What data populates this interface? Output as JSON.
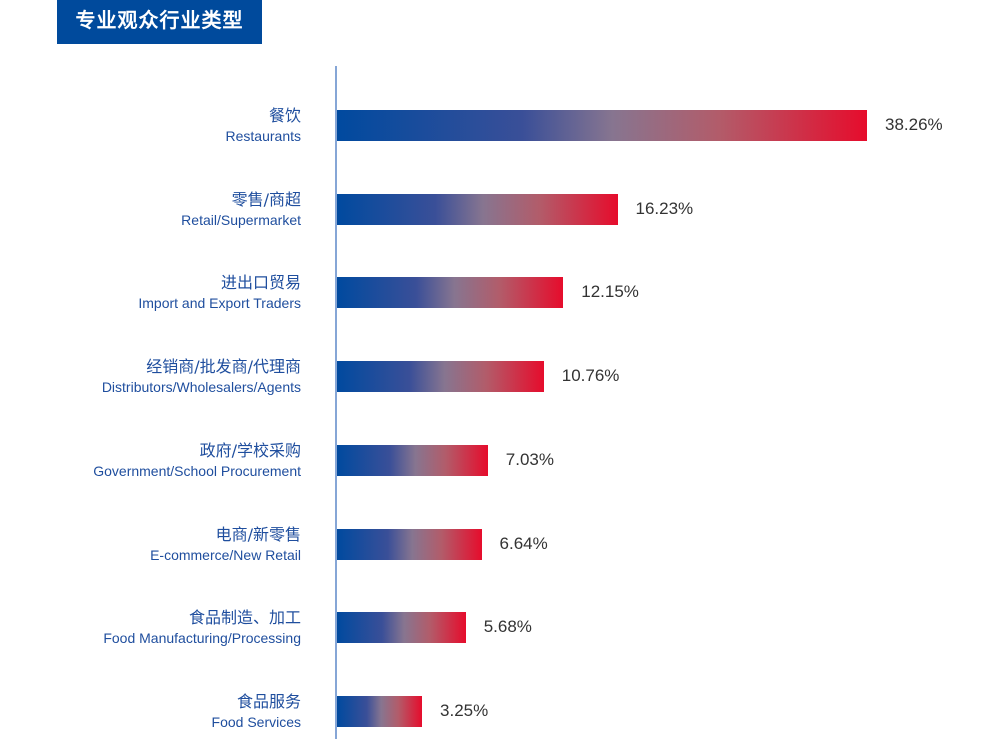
{
  "header": {
    "title": "专业观众行业类型"
  },
  "chart_data": {
    "type": "bar",
    "orientation": "horizontal",
    "title": "专业观众行业类型",
    "categories": [
      {
        "cn": "餐饮",
        "en": "Restaurants"
      },
      {
        "cn": "零售/商超",
        "en": "Retail/Supermarket"
      },
      {
        "cn": "进出口贸易",
        "en": "Import and Export Traders"
      },
      {
        "cn": "经销商/批发商/代理商",
        "en": "Distributors/Wholesalers/Agents"
      },
      {
        "cn": "政府/学校采购",
        "en": "Government/School Procurement"
      },
      {
        "cn": "电商/新零售",
        "en": "E-commerce/New Retail"
      },
      {
        "cn": "食品制造、加工",
        "en": "Food Manufacturing/Processing"
      },
      {
        "cn": "食品服务",
        "en": "Food Services"
      }
    ],
    "values": [
      38.26,
      16.23,
      12.15,
      10.76,
      7.03,
      6.64,
      5.68,
      3.25
    ],
    "value_labels": [
      "38.26%",
      "16.23%",
      "12.15%",
      "10.76%",
      "7.03%",
      "6.64%",
      "5.68%",
      "3.25%"
    ],
    "unit": "%",
    "colors": {
      "gradient_start": "#004a9f",
      "gradient_mid": "#877590",
      "gradient_end": "#e60c2c",
      "title_bg": "#004a9c",
      "label": "#1f4e9e"
    },
    "grid": false,
    "legend": "none"
  }
}
